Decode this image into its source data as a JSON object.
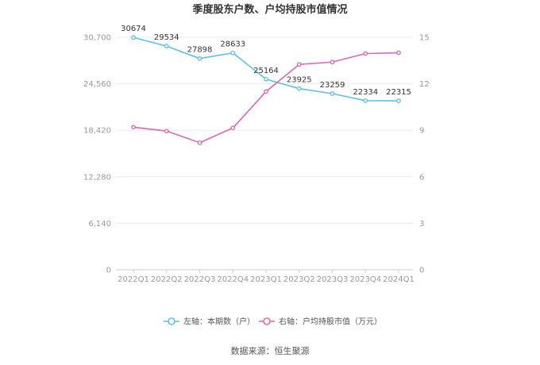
{
  "chart_data": {
    "type": "line",
    "title": "季度股东户数、户均持股市值情况",
    "categories": [
      "2022Q1",
      "2022Q2",
      "2022Q3",
      "2022Q4",
      "2023Q1",
      "2023Q2",
      "2023Q3",
      "2023Q4",
      "2024Q1"
    ],
    "series": [
      {
        "name": "左轴：本期数（户）",
        "axis": "left",
        "color": "#5bc0eb",
        "values": [
          30674,
          29534,
          27898,
          28633,
          25164,
          23925,
          23259,
          22334,
          22315
        ],
        "data_labels": [
          "30674",
          "29534",
          "27898",
          "28633",
          "25164",
          "23925",
          "23259",
          "22334",
          "22315"
        ]
      },
      {
        "name": "右轴：户均持股市值（万元）",
        "axis": "right",
        "color": "#d966b0",
        "values": [
          9.2,
          8.95,
          8.2,
          9.15,
          11.5,
          13.25,
          13.4,
          13.95,
          14.0
        ]
      }
    ],
    "y_left": {
      "ylim": [
        0,
        30700
      ],
      "ticks": [
        "0",
        "6,140",
        "12,280",
        "18,420",
        "24,560",
        "30,700"
      ]
    },
    "y_right": {
      "ylim": [
        0,
        15
      ],
      "ticks": [
        "0",
        "3",
        "6",
        "9",
        "12",
        "15"
      ]
    },
    "grid": true,
    "legend_position": "bottom"
  },
  "footer": {
    "source": "数据来源：恒生聚源"
  }
}
